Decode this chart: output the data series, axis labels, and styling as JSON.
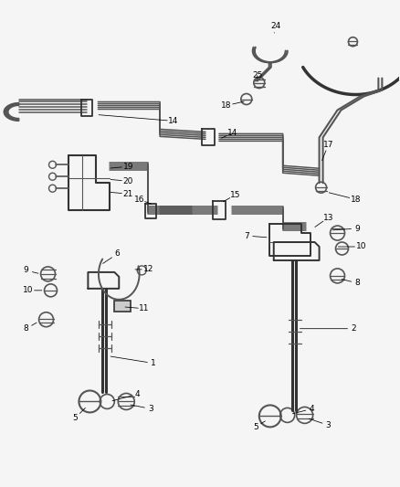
{
  "bg_color": "#f5f5f5",
  "fig_width": 4.38,
  "fig_height": 5.33,
  "dpi": 100,
  "line_color": "#555555",
  "dark_color": "#333333",
  "label_fontsize": 6.5,
  "lw_tube": 1.1,
  "lw_main": 1.4
}
